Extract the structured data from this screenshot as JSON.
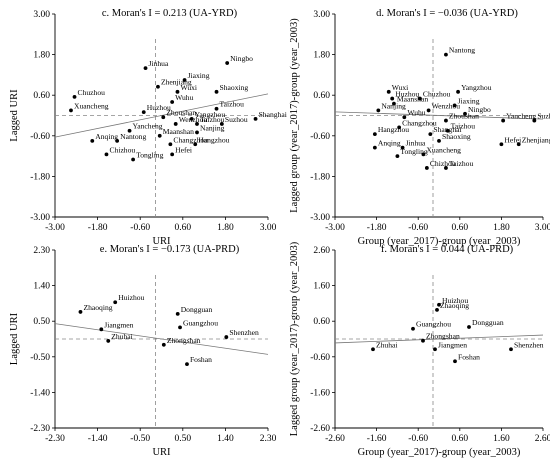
{
  "chart_data": [
    {
      "type": "scatter",
      "panel": "c",
      "title": "c. Moran's I = 0.213   (UA-YRD)",
      "xlabel": "URI",
      "ylabel": "Lagged URI",
      "xlim": [
        -3.0,
        3.0
      ],
      "ylim": [
        -3.0,
        3.0
      ],
      "xticks": [
        "-3.00",
        "-1.80",
        "-0.60",
        "0.60",
        "1.80",
        "3.00"
      ],
      "yticks": [
        "3.00",
        "1.80",
        "0.60",
        "-0.60",
        "-1.80",
        "-3.00"
      ],
      "slope": 0.213,
      "points": [
        {
          "name": "Ningbo",
          "x": 1.85,
          "y": 1.55
        },
        {
          "name": "Jinhua",
          "x": -0.45,
          "y": 1.4
        },
        {
          "name": "Jiaxing",
          "x": 0.65,
          "y": 1.05
        },
        {
          "name": "Zhenjiang",
          "x": -0.1,
          "y": 0.85
        },
        {
          "name": "Wuxi",
          "x": 0.45,
          "y": 0.7
        },
        {
          "name": "Shaoxing",
          "x": 1.55,
          "y": 0.7
        },
        {
          "name": "Chuzhou",
          "x": -2.45,
          "y": 0.55
        },
        {
          "name": "Wuhu",
          "x": 0.3,
          "y": 0.4
        },
        {
          "name": "Xuancheng",
          "x": -2.55,
          "y": 0.15
        },
        {
          "name": "Huzhou",
          "x": -0.5,
          "y": 0.1
        },
        {
          "name": "Taizhou",
          "x": 1.55,
          "y": 0.2
        },
        {
          "name": "Zhoushan",
          "x": 0.05,
          "y": -0.05
        },
        {
          "name": "Yangzhou",
          "x": 0.85,
          "y": -0.1
        },
        {
          "name": "Shanghai",
          "x": 2.65,
          "y": -0.1
        },
        {
          "name": "Wenzhou",
          "x": 0.4,
          "y": -0.25
        },
        {
          "name": "Taizhou",
          "x": 1.0,
          "y": -0.25
        },
        {
          "name": "Suzhou",
          "x": 1.7,
          "y": -0.25
        },
        {
          "name": "Yancheng",
          "x": -0.9,
          "y": -0.45
        },
        {
          "name": "Nanjing",
          "x": 1.0,
          "y": -0.5
        },
        {
          "name": "Maanshan",
          "x": -0.05,
          "y": -0.6
        },
        {
          "name": "Anqing",
          "x": -1.95,
          "y": -0.75
        },
        {
          "name": "Nantong",
          "x": -1.25,
          "y": -0.75
        },
        {
          "name": "Changzhou",
          "x": 0.25,
          "y": -0.85
        },
        {
          "name": "Hangzhou",
          "x": 0.95,
          "y": -0.85
        },
        {
          "name": "Hefei",
          "x": 0.3,
          "y": -1.15
        },
        {
          "name": "Chizhou",
          "x": -1.55,
          "y": -1.15
        },
        {
          "name": "Tongling",
          "x": -0.8,
          "y": -1.3
        }
      ]
    },
    {
      "type": "scatter",
      "panel": "d",
      "title": "d. Moran's I = −0.036   (UA-YRD)",
      "xlabel": "Group (year_2017)-group (year_2003)",
      "ylabel": "Lagged group (year_2017)-group (year_2003)",
      "xlim": [
        -3.0,
        3.0
      ],
      "ylim": [
        -3.0,
        3.0
      ],
      "xticks": [
        "-3.00",
        "-1.80",
        "-0.60",
        "0.60",
        "1.80",
        "3.00"
      ],
      "yticks": [
        "3.00",
        "1.80",
        "0.60",
        "-0.60",
        "-1.80",
        "-3.00"
      ],
      "slope": -0.036,
      "points": [
        {
          "name": "Nantong",
          "x": 0.2,
          "y": 1.8
        },
        {
          "name": "Wuxi",
          "x": -1.45,
          "y": 0.7
        },
        {
          "name": "Yangzhou",
          "x": 0.55,
          "y": 0.7
        },
        {
          "name": "Huzhou",
          "x": -1.35,
          "y": 0.5
        },
        {
          "name": "Chuzhou",
          "x": -0.55,
          "y": 0.5
        },
        {
          "name": "Maanshan",
          "x": -1.3,
          "y": 0.35
        },
        {
          "name": "Jiaxing",
          "x": 0.45,
          "y": 0.3
        },
        {
          "name": "Nanjing",
          "x": -1.75,
          "y": 0.15
        },
        {
          "name": "Wenzhou",
          "x": -0.3,
          "y": 0.15
        },
        {
          "name": "Ningbo",
          "x": 0.75,
          "y": 0.05
        },
        {
          "name": "Wuhu",
          "x": -1.0,
          "y": -0.05
        },
        {
          "name": "Zhoushan",
          "x": 0.2,
          "y": -0.15
        },
        {
          "name": "Yancheng",
          "x": 1.85,
          "y": -0.15
        },
        {
          "name": "Suzhou",
          "x": 2.75,
          "y": -0.15
        },
        {
          "name": "Changzhou",
          "x": -1.15,
          "y": -0.35
        },
        {
          "name": "Taizhou",
          "x": 0.25,
          "y": -0.45
        },
        {
          "name": "Shanghai",
          "x": -0.25,
          "y": -0.55
        },
        {
          "name": "Hangzhou",
          "x": -1.85,
          "y": -0.55
        },
        {
          "name": "Shaoxing",
          "x": 0.0,
          "y": -0.75
        },
        {
          "name": "Anqing",
          "x": -1.85,
          "y": -0.95
        },
        {
          "name": "Jinhua",
          "x": -1.05,
          "y": -0.95
        },
        {
          "name": "Hefei",
          "x": 1.8,
          "y": -0.85
        },
        {
          "name": "Zhenjiang",
          "x": 2.3,
          "y": -0.85
        },
        {
          "name": "Tongling",
          "x": -1.2,
          "y": -1.2
        },
        {
          "name": "Xuancheng",
          "x": -0.45,
          "y": -1.15
        },
        {
          "name": "Chizhou",
          "x": -0.35,
          "y": -1.55
        },
        {
          "name": "Taizhou",
          "x": 0.2,
          "y": -1.55
        }
      ]
    },
    {
      "type": "scatter",
      "panel": "e",
      "title": "e. Moran's I = −0.173   (UA-PRD)",
      "xlabel": "URI",
      "ylabel": "Lagged URI",
      "xlim": [
        -2.3,
        2.3
      ],
      "ylim": [
        -2.3,
        2.3
      ],
      "xticks": [
        "-2.30",
        "-1.40",
        "-0.50",
        "0.50",
        "1.40",
        "2.30"
      ],
      "yticks": [
        "2.30",
        "1.40",
        "0.50",
        "-0.50",
        "-1.40",
        "-2.30"
      ],
      "slope": -0.173,
      "points": [
        {
          "name": "Huizhou",
          "x": -1.0,
          "y": 0.95
        },
        {
          "name": "Zhaoqing",
          "x": -1.75,
          "y": 0.7
        },
        {
          "name": "Dongguan",
          "x": 0.35,
          "y": 0.65
        },
        {
          "name": "Jiangmen",
          "x": -1.3,
          "y": 0.25
        },
        {
          "name": "Guangzhou",
          "x": 0.4,
          "y": 0.3
        },
        {
          "name": "Shenzhen",
          "x": 1.4,
          "y": 0.05
        },
        {
          "name": "Zhuhai",
          "x": -1.15,
          "y": -0.05
        },
        {
          "name": "Zhongshan",
          "x": 0.05,
          "y": -0.15
        },
        {
          "name": "Foshan",
          "x": 0.55,
          "y": -0.65
        }
      ]
    },
    {
      "type": "scatter",
      "panel": "f",
      "title": "f. Moran's I = 0.044   (UA-PRD)",
      "xlabel": "Group (year_2017)-group (year_2003)",
      "ylabel": "Lagged group (year_2017)-group (year_2003)",
      "xlim": [
        -2.6,
        2.6
      ],
      "ylim": [
        -2.6,
        2.6
      ],
      "xticks": [
        "-2.60",
        "-1.60",
        "-0.60",
        "0.60",
        "1.60",
        "2.60"
      ],
      "yticks": [
        "2.60",
        "1.60",
        "0.60",
        "-0.60",
        "-1.60",
        "-2.60"
      ],
      "slope": 0.044,
      "points": [
        {
          "name": "Huizhou",
          "x": 0.0,
          "y": 1.0
        },
        {
          "name": "Zhaoqing",
          "x": -0.05,
          "y": 0.85
        },
        {
          "name": "Dongguan",
          "x": 0.75,
          "y": 0.35
        },
        {
          "name": "Guangzhou",
          "x": -0.65,
          "y": 0.3
        },
        {
          "name": "Zhongshan",
          "x": -0.4,
          "y": -0.05
        },
        {
          "name": "Zhuhai",
          "x": -1.65,
          "y": -0.3
        },
        {
          "name": "Jiangmen",
          "x": -0.1,
          "y": -0.3
        },
        {
          "name": "Shenzhen",
          "x": 1.8,
          "y": -0.3
        },
        {
          "name": "Foshan",
          "x": 0.4,
          "y": -0.65
        }
      ]
    }
  ]
}
